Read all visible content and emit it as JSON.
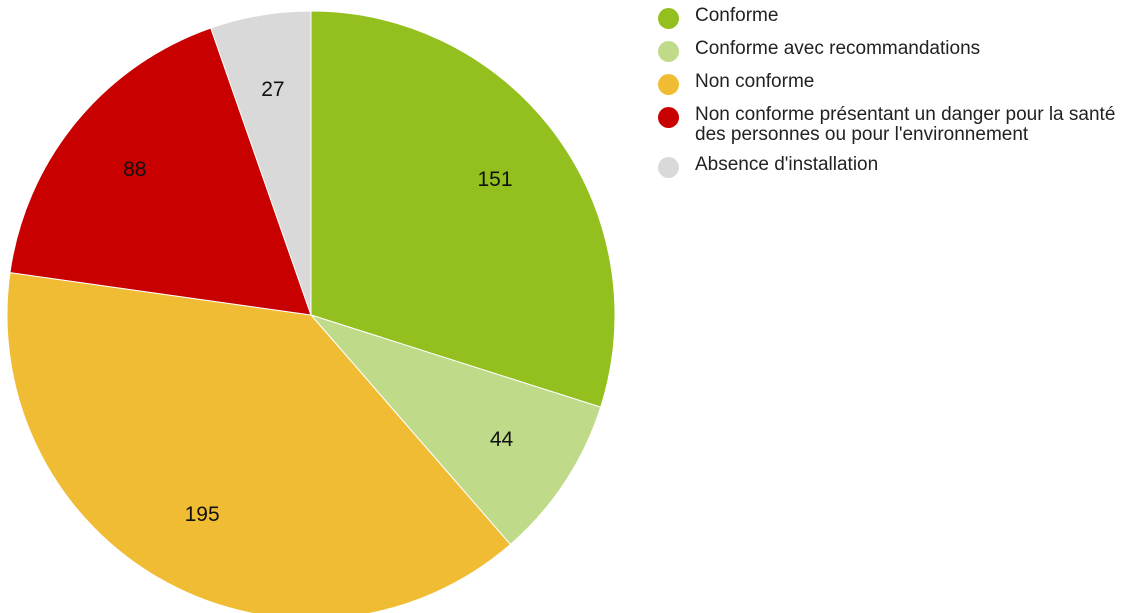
{
  "chart_data": {
    "type": "pie",
    "categories": [
      "Conforme",
      "Conforme avec recommandations",
      "Non conforme",
      "Non conforme présentant un danger pour la santé des personnes ou pour l'environnement",
      "Absence d'installation"
    ],
    "values": [
      151,
      44,
      195,
      88,
      27
    ],
    "colors": [
      "#93bf1f",
      "#bfda89",
      "#f0bc33",
      "#c80000",
      "#d9d9d9"
    ],
    "legend": "right"
  }
}
